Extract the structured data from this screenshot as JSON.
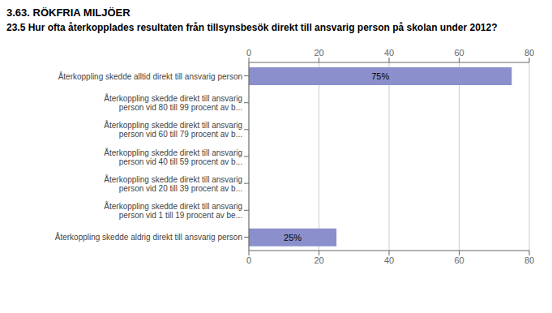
{
  "chart_data": {
    "type": "bar",
    "title": "3.63. RÖKFRIA MILJÖER",
    "subtitle": "23.5 Hur ofta återkopplades resultaten från tillsynsbesök direkt till ansvarig person på skolan under 2012?",
    "orientation": "horizontal",
    "categories": [
      "Återkoppling skedde alltid direkt till ansvarig person",
      "Återkoppling skedde direkt till ansvarig\nperson vid 80 till 99 procent av b...",
      "Återkoppling skedde direkt till ansvarig\nperson vid 60 till 79 procent av b...",
      "Återkoppling skedde direkt till ansvarig\nperson vid 40 till 59 procent av b...",
      "Återkoppling skedde direkt till ansvarig\nperson vid 20 till 39 procent av b...",
      "Återkoppling skedde direkt till ansvarig\nperson vid 1 till 19 procent av be...",
      "Återkoppling skedde aldrig direkt till ansvarig person"
    ],
    "values": [
      75,
      0,
      0,
      0,
      0,
      0,
      25
    ],
    "value_labels": [
      "75%",
      null,
      null,
      null,
      null,
      null,
      "25%"
    ],
    "data_labels": true,
    "color": "#8b8fcc",
    "xlim": [
      0,
      80
    ],
    "xticks": [
      0,
      20,
      40,
      60,
      80
    ],
    "grid": true
  }
}
